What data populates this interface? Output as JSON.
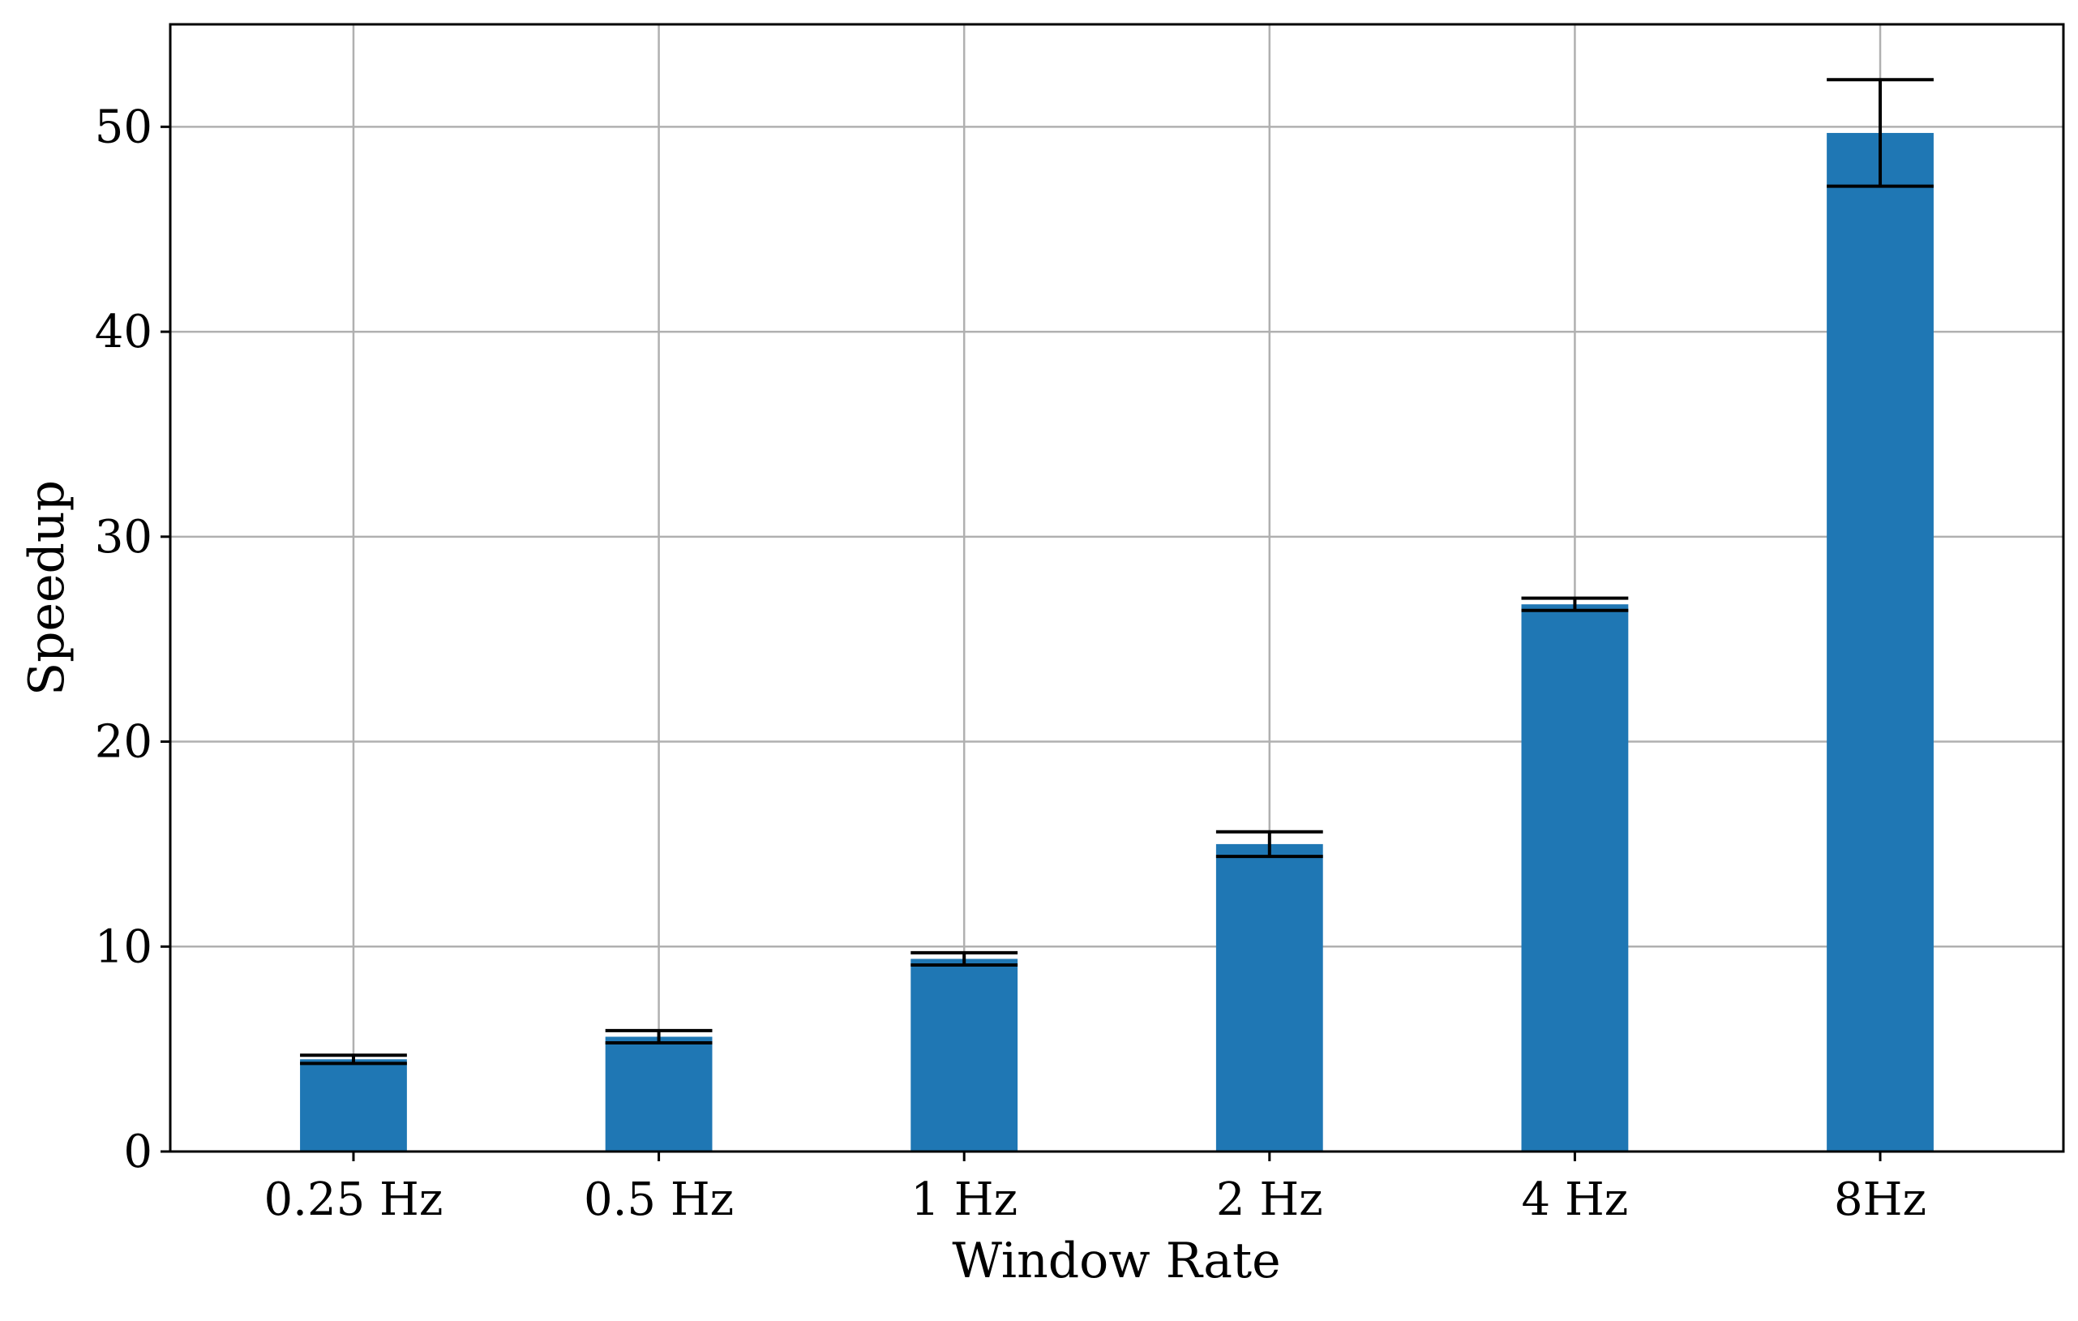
{
  "chart_data": {
    "type": "bar",
    "categories": [
      "0.25 Hz",
      "0.5 Hz",
      "1 Hz",
      "2 Hz",
      "4 Hz",
      "8Hz"
    ],
    "values": [
      4.5,
      5.6,
      9.4,
      15.0,
      26.7,
      49.7
    ],
    "error_low": [
      4.3,
      5.3,
      9.1,
      14.4,
      26.4,
      47.1
    ],
    "error_high": [
      4.7,
      5.9,
      9.7,
      15.6,
      27.0,
      52.3
    ],
    "xlabel": "Window Rate",
    "ylabel": "Speedup",
    "ylim": [
      0,
      55
    ],
    "yticks": [
      0,
      10,
      20,
      30,
      40,
      50
    ],
    "ytick_labels": [
      "0",
      "10",
      "20",
      "30",
      "40",
      "50"
    ],
    "grid": true,
    "bar_color": "#1f77b4",
    "error_color": "#000000"
  }
}
